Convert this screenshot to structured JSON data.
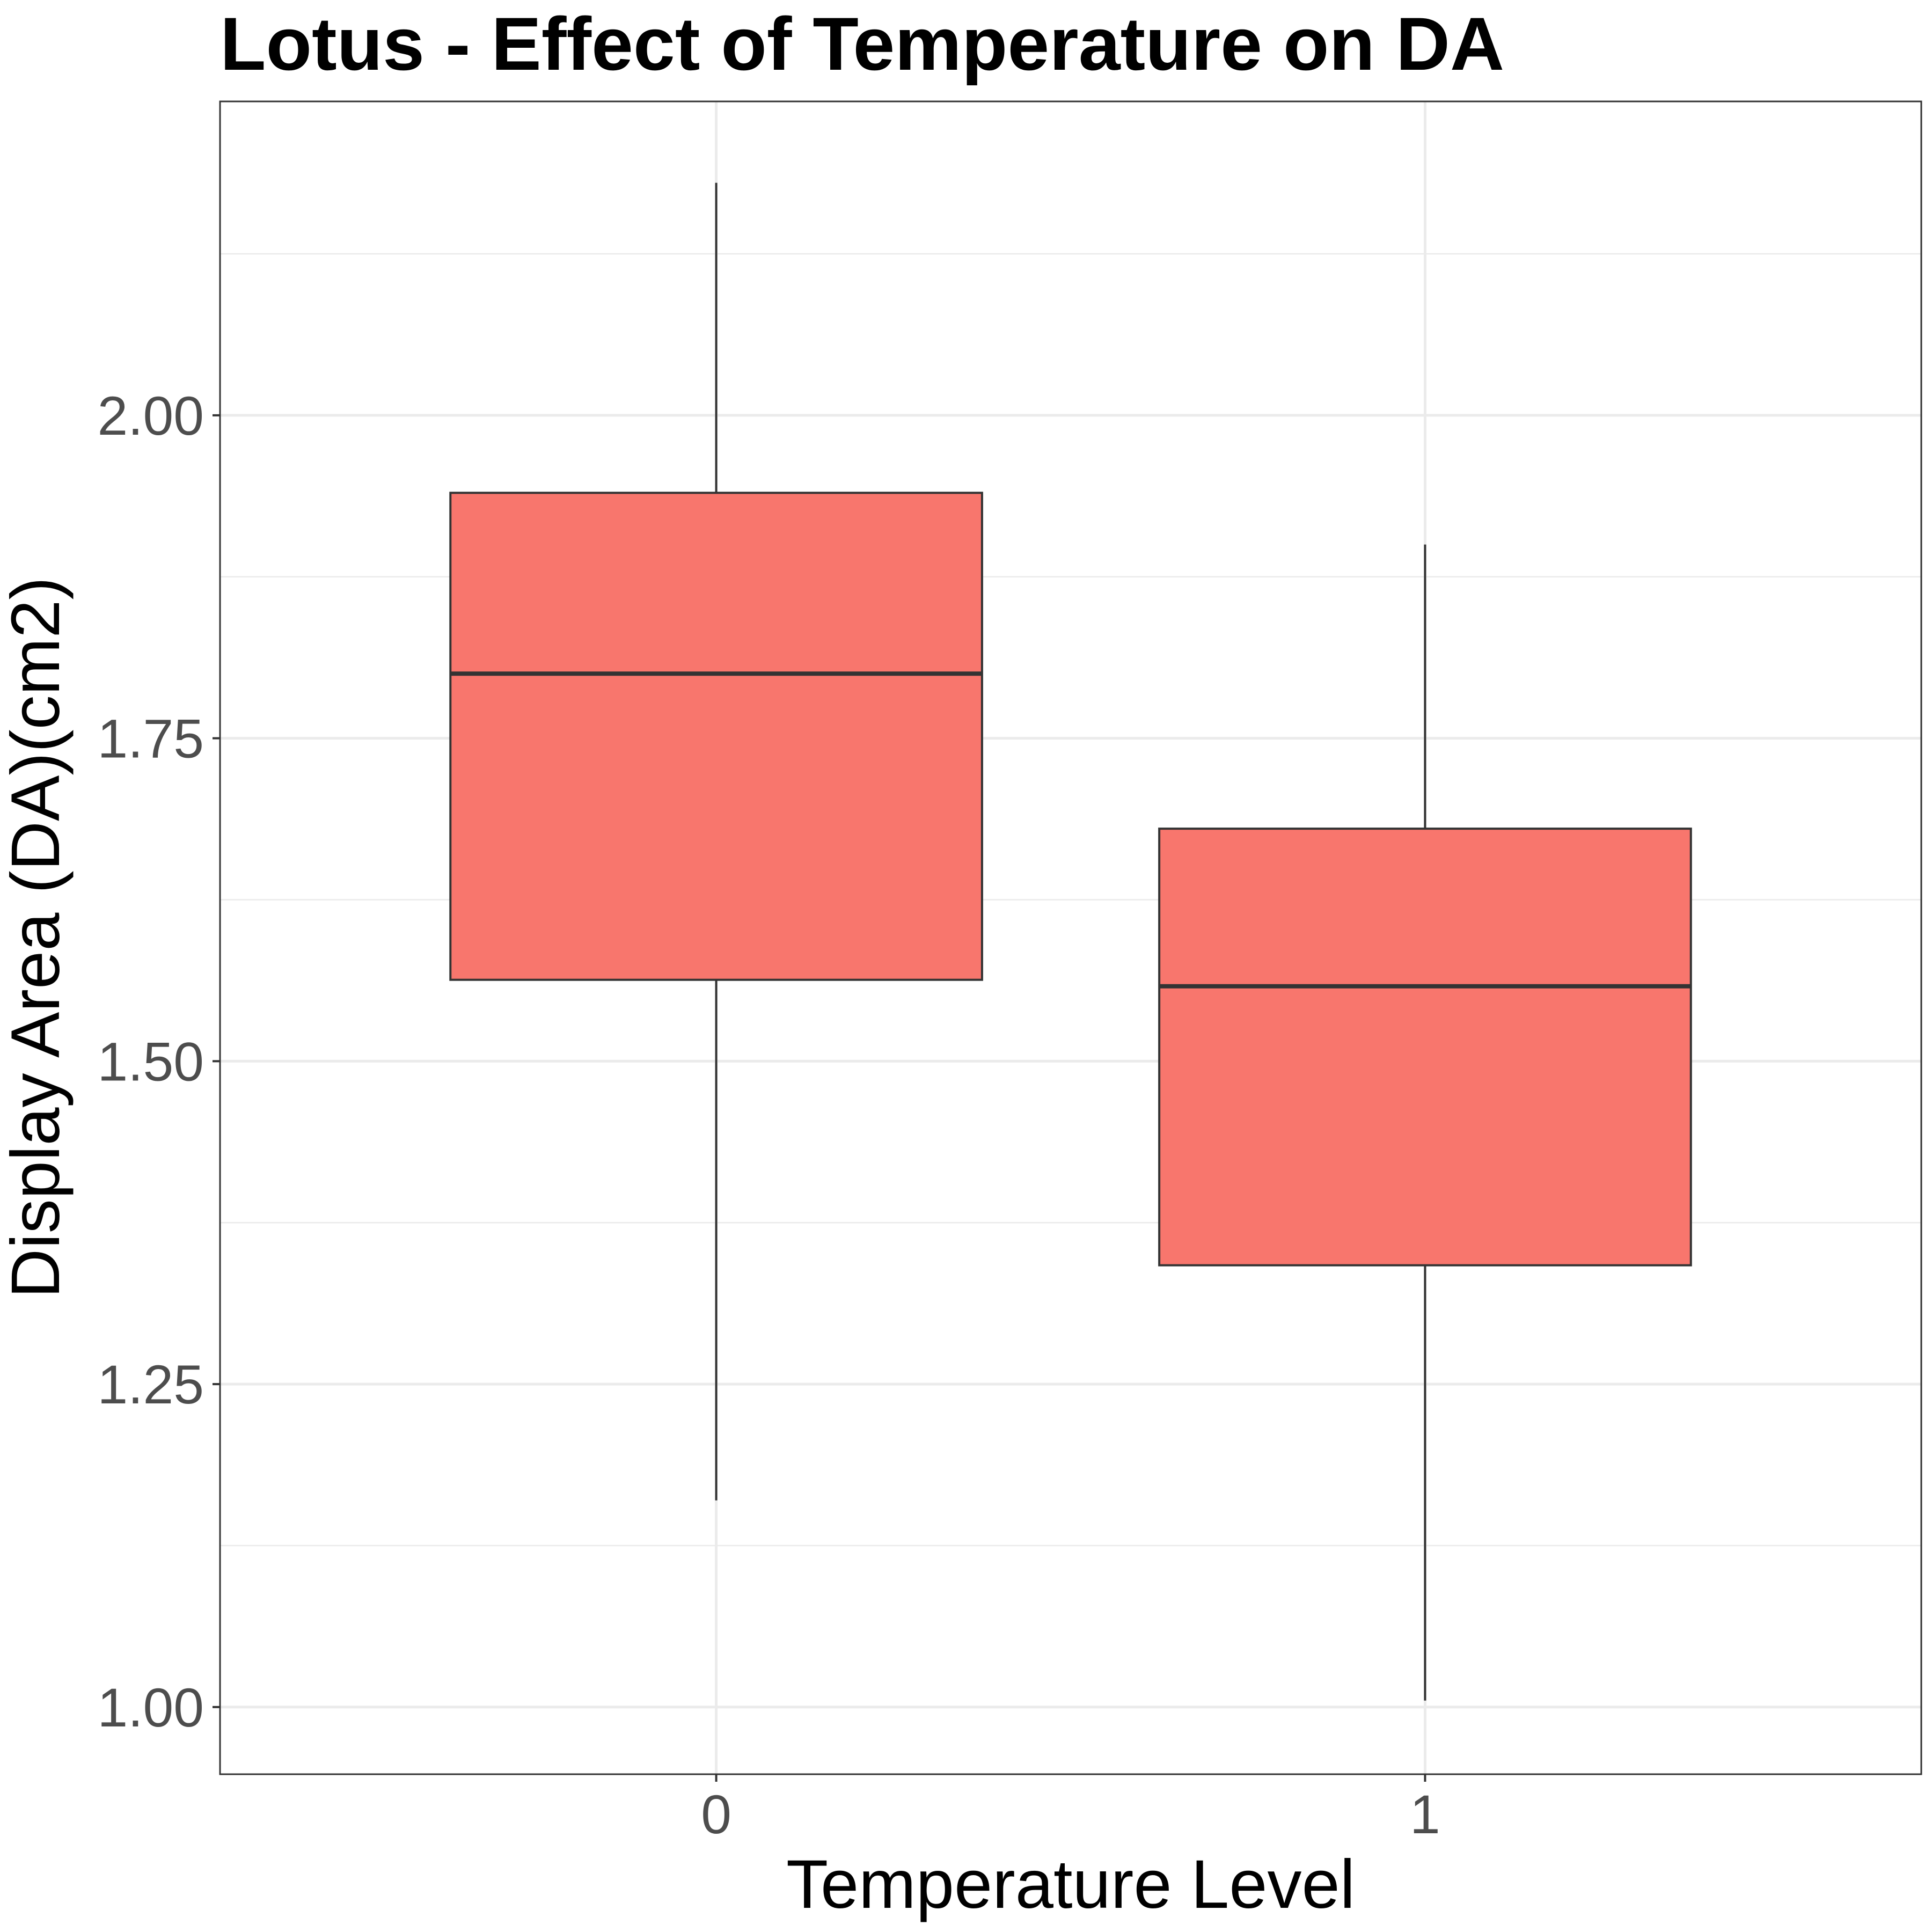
{
  "chart_data": {
    "type": "boxplot",
    "title": "Lotus - Effect of Temperature on DA",
    "xlabel": "Temperature Level",
    "ylabel": "Display Area (DA)(cm2)",
    "categories": [
      "0",
      "1"
    ],
    "boxes": [
      {
        "category": "0",
        "whisker_low": 1.16,
        "q1": 1.563,
        "median": 1.8,
        "q3": 1.94,
        "whisker_high": 2.18
      },
      {
        "category": "1",
        "whisker_low": 1.005,
        "q1": 1.342,
        "median": 1.558,
        "q3": 1.68,
        "whisker_high": 1.9
      }
    ],
    "ylim": [
      0.948,
      2.243
    ],
    "yticks": [
      1.0,
      1.25,
      1.5,
      1.75,
      2.0
    ],
    "ytick_labels": [
      "1.00",
      "1.25",
      "1.50",
      "1.75",
      "2.00"
    ],
    "grid": true,
    "legend": "none",
    "colors": {
      "box_fill": "#F8766D",
      "box_stroke": "#333333",
      "grid": "#EBEBEB",
      "panel_border": "#333333",
      "tick_text": "#4D4D4D"
    }
  }
}
